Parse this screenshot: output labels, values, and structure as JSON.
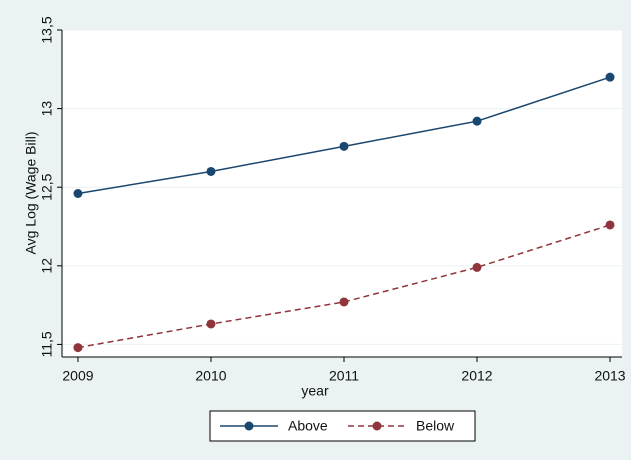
{
  "chart_data": {
    "type": "line",
    "x_label": "year",
    "y_label": "Avg Log (Wage Bill)",
    "x": [
      2009,
      2010,
      2011,
      2012,
      2013
    ],
    "series": [
      {
        "name": "Above",
        "color": "#1a476f",
        "line_style": "solid",
        "values": [
          12.46,
          12.6,
          12.76,
          12.92,
          13.2
        ]
      },
      {
        "name": "Below",
        "color": "#90353b",
        "line_style": "dashed",
        "values": [
          11.48,
          11.63,
          11.77,
          11.99,
          12.26
        ]
      }
    ],
    "xlim": [
      2008.88,
      2013.09
    ],
    "xticks": [
      2009,
      2010,
      2011,
      2012,
      2013
    ],
    "ylim": [
      11.42,
      13.5
    ],
    "yticks": [
      {
        "value": 11.5,
        "label": "11,5"
      },
      12,
      {
        "value": 12.5,
        "label": "12,5"
      },
      13,
      {
        "value": 13.5,
        "label": "13,5"
      }
    ],
    "grid": true,
    "legend": "bottom"
  }
}
